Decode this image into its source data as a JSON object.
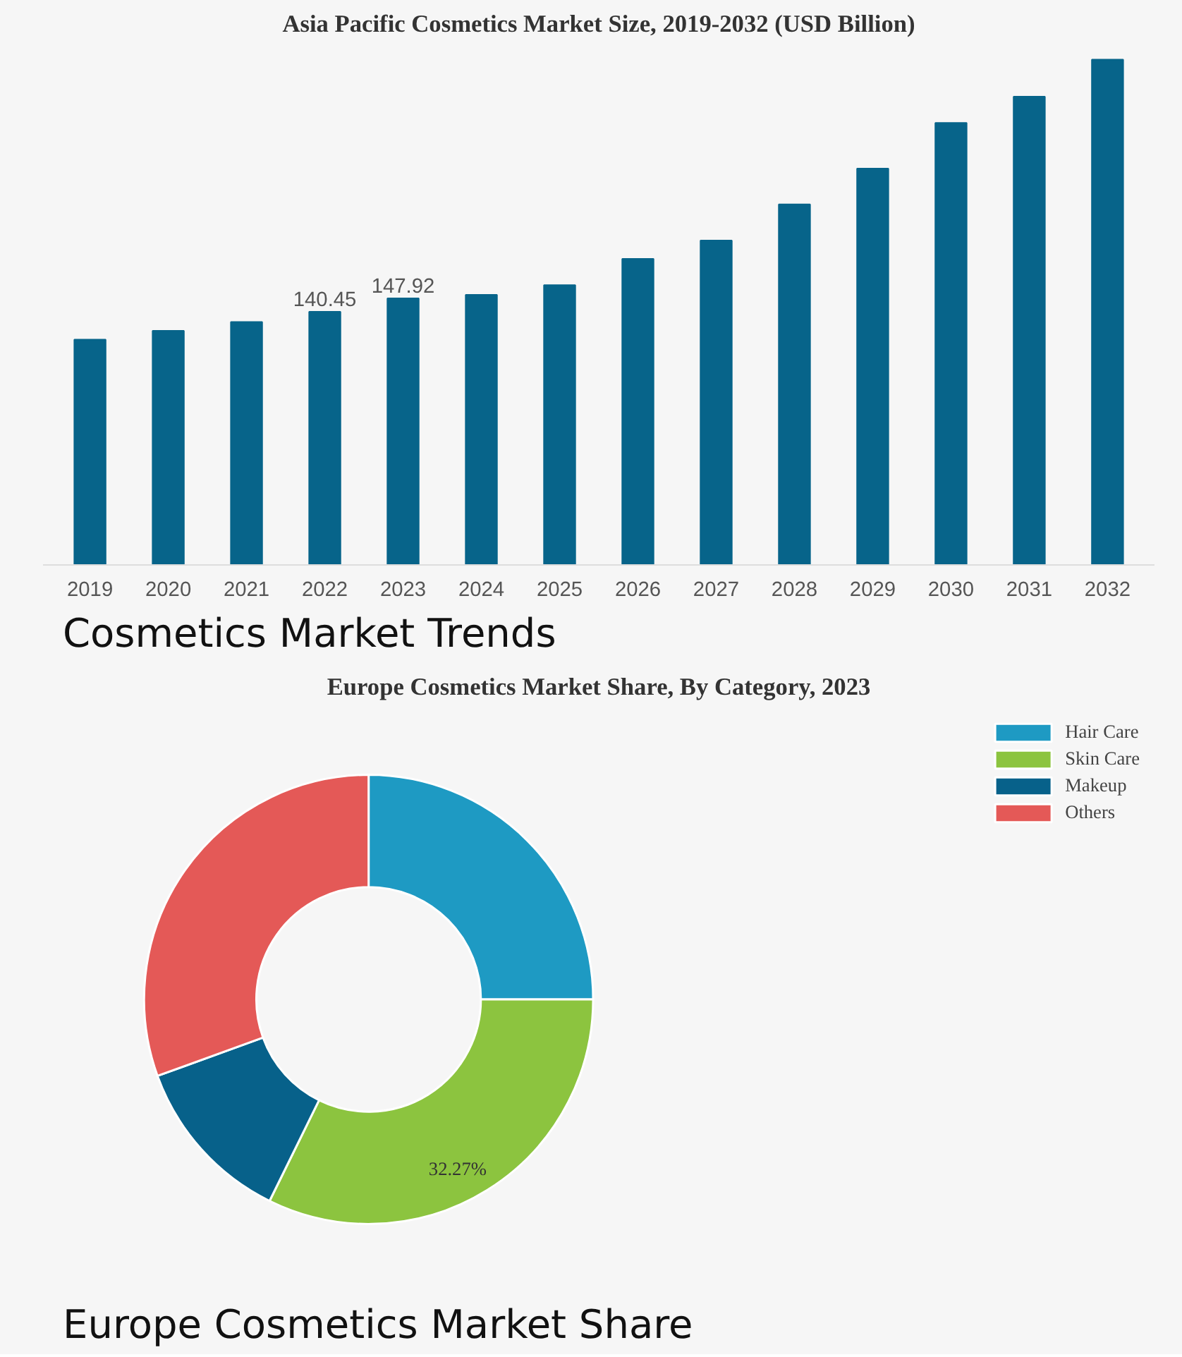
{
  "chart_data": [
    {
      "type": "bar",
      "title": "Asia Pacific Cosmetics Market Size, 2019-2032 (USD Billion)",
      "categories": [
        "2019",
        "2020",
        "2021",
        "2022",
        "2023",
        "2024",
        "2025",
        "2026",
        "2027",
        "2028",
        "2029",
        "2030",
        "2031",
        "2032"
      ],
      "values": [
        125.0,
        129.9,
        134.8,
        140.45,
        147.92,
        149.8,
        155.2,
        169.8,
        180.0,
        200.0,
        219.9,
        245.2,
        259.8,
        280.3
      ],
      "value_labels": [
        null,
        null,
        null,
        "140.45",
        "147.92",
        null,
        null,
        null,
        null,
        null,
        null,
        null,
        null,
        null
      ],
      "color": "#07648a",
      "tick_labels": "x",
      "grid": false,
      "annotations": [
        "Cosmetics Market Trends"
      ]
    },
    {
      "type": "donut",
      "title": "Europe Cosmetics Market Share, By Category, 2023",
      "categories": [
        "Hair Care",
        "Skin Care",
        "Makeup",
        "Others"
      ],
      "values": [
        25.0,
        32.27,
        12.2,
        30.53
      ],
      "colors": [
        "#1e9ac3",
        "#8cc43f",
        "#07618a",
        "#e45957"
      ],
      "value_labels": [
        null,
        "32.27%",
        null,
        null
      ],
      "legend": "top right",
      "annotations": [
        "Europe Cosmetics Market Share"
      ]
    }
  ]
}
